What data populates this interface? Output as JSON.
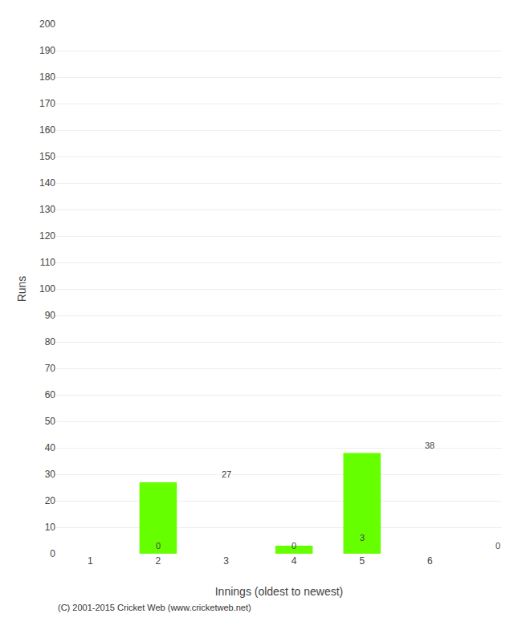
{
  "chart_data": {
    "type": "bar",
    "categories": [
      1,
      2,
      3,
      4,
      5,
      6
    ],
    "values": [
      0,
      27,
      0,
      3,
      38,
      0
    ],
    "color": "#66ff00",
    "xlabel": "Innings (oldest to newest)",
    "ylabel": "Runs",
    "ylim": [
      0,
      200
    ],
    "yticks": [
      0,
      10,
      20,
      30,
      40,
      50,
      60,
      70,
      80,
      90,
      100,
      110,
      120,
      130,
      140,
      150,
      160,
      170,
      180,
      190,
      200
    ],
    "grid": true,
    "data_labels": true,
    "annotations": [
      "(C) 2001-2015 Cricket Web (www.cricketweb.net)"
    ]
  }
}
